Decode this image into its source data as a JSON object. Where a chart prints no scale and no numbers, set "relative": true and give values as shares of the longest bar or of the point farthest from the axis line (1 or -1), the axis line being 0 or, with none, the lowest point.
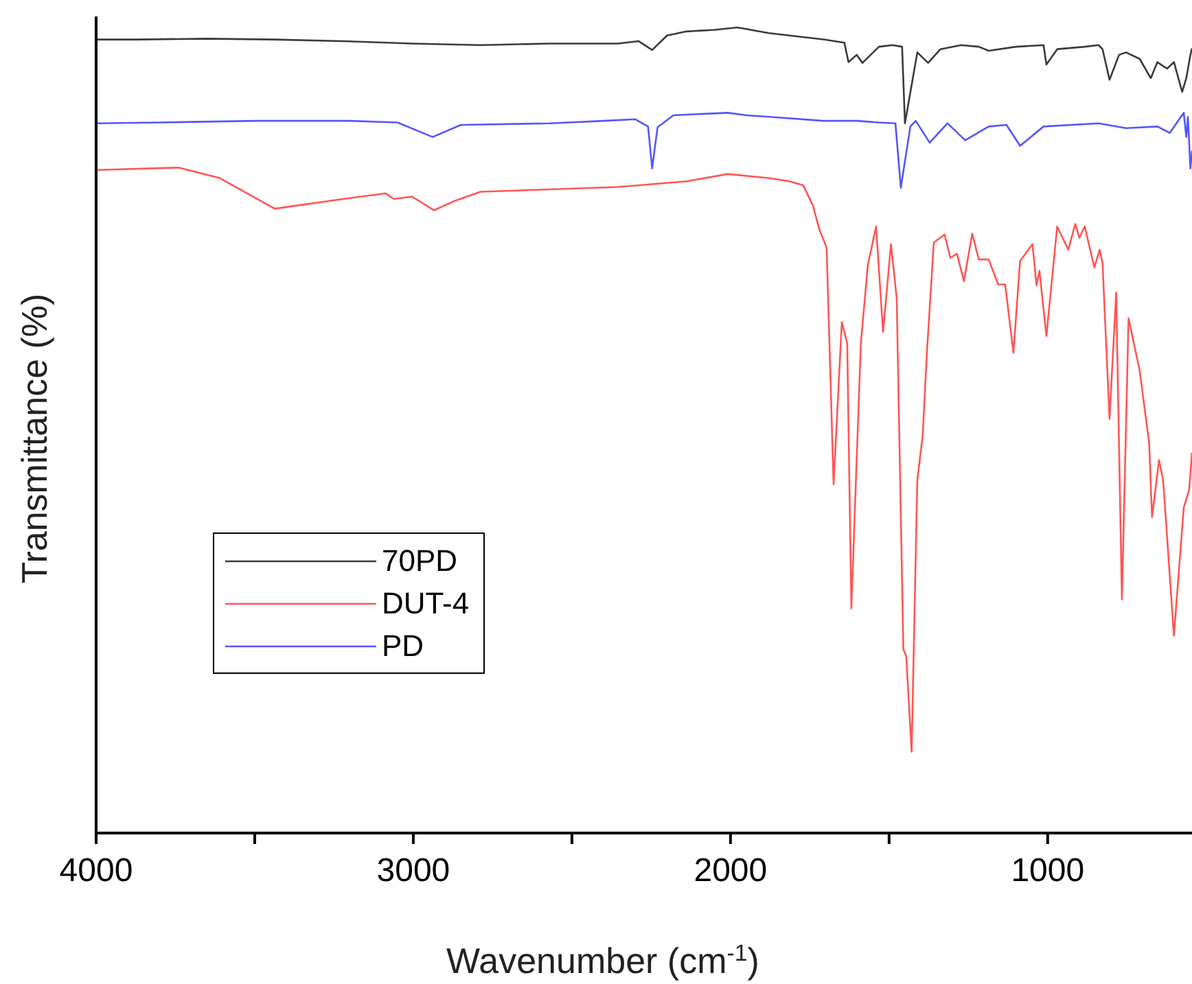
{
  "chart_data": {
    "type": "line",
    "relative": true,
    "xlabel": "Wavenumber (cm$^{-1}$)",
    "ylabel": "Transmittance (%)",
    "xlim": [
      4000,
      545
    ],
    "xticks": [
      4000,
      {
        "value": 3500,
        "label": null
      },
      3000,
      {
        "value": 2500,
        "label": null
      },
      2000,
      {
        "value": 1500,
        "label": null
      },
      1000
    ],
    "legend": "left",
    "line_style": "solid",
    "marker": "none",
    "series": [
      {
        "name": "70PD",
        "color": "#3a3a3a",
        "x": [
          4000,
          3870,
          3654,
          3437,
          3221,
          3004,
          2788,
          2571,
          2355,
          2290,
          2247,
          2200,
          2139,
          2050,
          1978,
          1879,
          1706,
          1641,
          1628,
          1602,
          1584,
          1532,
          1489,
          1459,
          1450,
          1411,
          1377,
          1338,
          1273,
          1217,
          1186,
          1100,
          1013,
          1004,
          970,
          883,
          840,
          827,
          805,
          775,
          753,
          710,
          675,
          654,
          636,
          623,
          602,
          576,
          563,
          550,
          545
        ],
        "values": [
          0.985,
          0.985,
          0.986,
          0.985,
          0.983,
          0.98,
          0.978,
          0.98,
          0.98,
          0.983,
          0.972,
          0.99,
          0.995,
          0.997,
          1,
          0.993,
          0.985,
          0.981,
          0.957,
          0.966,
          0.956,
          0.976,
          0.978,
          0.976,
          0.881,
          0.969,
          0.956,
          0.973,
          0.978,
          0.976,
          0.971,
          0.976,
          0.978,
          0.954,
          0.973,
          0.976,
          0.978,
          0.973,
          0.935,
          0.966,
          0.969,
          0.961,
          0.937,
          0.957,
          0.952,
          0.949,
          0.957,
          0.92,
          0.937,
          0.966,
          0.974
        ]
      },
      {
        "name": "DUT-4",
        "color": "#ff5555",
        "x": [
          4000,
          3740,
          3610,
          3437,
          3221,
          3087,
          3061,
          3004,
          2935,
          2874,
          2788,
          2571,
          2355,
          2139,
          2009,
          1879,
          1814,
          1771,
          1740,
          1719,
          1697,
          1675,
          1649,
          1632,
          1619,
          1589,
          1567,
          1541,
          1519,
          1494,
          1476,
          1455,
          1446,
          1429,
          1411,
          1394,
          1381,
          1359,
          1325,
          1307,
          1286,
          1264,
          1238,
          1217,
          1186,
          1156,
          1134,
          1108,
          1087,
          1048,
          1035,
          1026,
          1004,
          970,
          935,
          913,
          900,
          883,
          853,
          836,
          827,
          805,
          784,
          766,
          745,
          710,
          680,
          671,
          649,
          636,
          602,
          571,
          554,
          545
        ],
        "values": [
          0.823,
          0.826,
          0.813,
          0.775,
          0.787,
          0.794,
          0.787,
          0.79,
          0.773,
          0.784,
          0.796,
          0.799,
          0.802,
          0.809,
          0.818,
          0.813,
          0.809,
          0.804,
          0.779,
          0.748,
          0.727,
          0.433,
          0.634,
          0.608,
          0.279,
          0.608,
          0.705,
          0.753,
          0.622,
          0.731,
          0.664,
          0.228,
          0.22,
          0.101,
          0.438,
          0.494,
          0.595,
          0.733,
          0.743,
          0.714,
          0.719,
          0.685,
          0.744,
          0.712,
          0.712,
          0.681,
          0.681,
          0.596,
          0.71,
          0.731,
          0.68,
          0.698,
          0.617,
          0.753,
          0.724,
          0.756,
          0.739,
          0.753,
          0.702,
          0.724,
          0.707,
          0.514,
          0.671,
          0.29,
          0.639,
          0.574,
          0.484,
          0.392,
          0.463,
          0.438,
          0.245,
          0.404,
          0.426,
          0.472
        ]
      },
      {
        "name": "PD",
        "color": "#5555ff",
        "x": [
          4000,
          3800,
          3500,
          3200,
          3050,
          2939,
          2850,
          2571,
          2400,
          2300,
          2260,
          2247,
          2230,
          2180,
          2009,
          1950,
          1879,
          1706,
          1600,
          1532,
          1480,
          1463,
          1433,
          1416,
          1372,
          1316,
          1260,
          1186,
          1130,
          1087,
          1013,
          840,
          753,
          654,
          615,
          589,
          571,
          563,
          558,
          550,
          545
        ],
        "values": [
          0.881,
          0.882,
          0.884,
          0.884,
          0.882,
          0.864,
          0.879,
          0.881,
          0.884,
          0.886,
          0.877,
          0.825,
          0.876,
          0.891,
          0.894,
          0.891,
          0.889,
          0.884,
          0.884,
          0.882,
          0.881,
          0.801,
          0.877,
          0.884,
          0.857,
          0.881,
          0.86,
          0.877,
          0.879,
          0.853,
          0.877,
          0.881,
          0.875,
          0.877,
          0.869,
          0.884,
          0.894,
          0.864,
          0.889,
          0.825,
          0.847
        ]
      }
    ]
  }
}
